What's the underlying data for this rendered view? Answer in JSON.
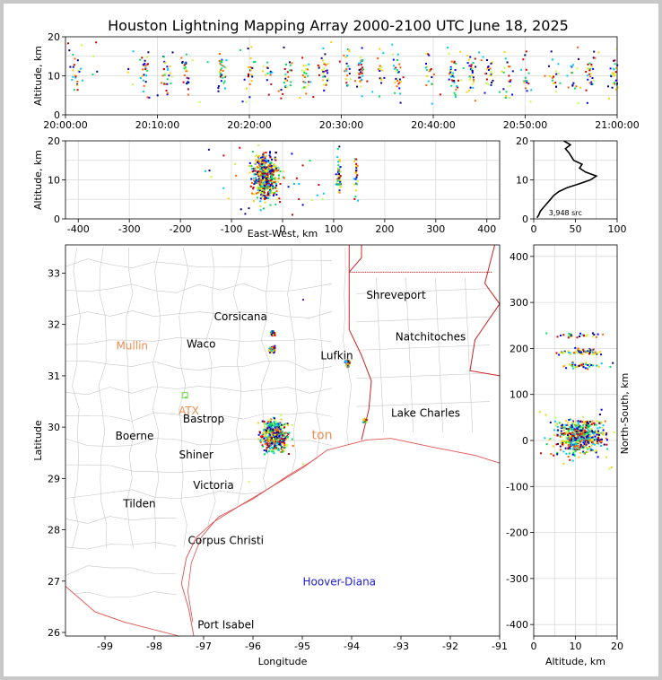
{
  "title": "Houston Lightning Mapping Array 2000-2100 UTC June 18, 2025",
  "colors": {
    "axis": "#000000",
    "grid": "#d9d9d9",
    "county": "#c8c8c8",
    "state": "#cc2222",
    "coast": "#e05050",
    "city": "#000000",
    "orange_site": "#f08c50",
    "blue_site": "#1f1fd0",
    "histogram": "#000000",
    "points": [
      "#000080",
      "#0000ff",
      "#00c8ff",
      "#00e060",
      "#c0ff40",
      "#ffd000",
      "#ff6000",
      "#d00000"
    ]
  },
  "chart_data": [
    {
      "id": "time_altitude",
      "type": "scatter",
      "xlabel": "",
      "ylabel": "Altitude, km",
      "x_ticks": [
        "20:00:00",
        "20:10:00",
        "20:20:00",
        "20:30:00",
        "20:40:00",
        "20:50:00",
        "21:00:00"
      ],
      "xlim": [
        "20:00:00",
        "21:00:00"
      ],
      "y_ticks": [
        0,
        10,
        20
      ],
      "ylim": [
        0,
        20
      ],
      "clusters_minutes": [
        1,
        8.5,
        11,
        13,
        17,
        20,
        22,
        24,
        26,
        28,
        30.5,
        32,
        34,
        36,
        39.5,
        42,
        44,
        46,
        48,
        50,
        53,
        55,
        57,
        59.5
      ],
      "grid": true
    },
    {
      "id": "east_west_altitude",
      "type": "scatter",
      "xlabel": "East-West, km",
      "ylabel": "Altitude, km",
      "x_ticks": [
        -400,
        -300,
        -200,
        -100,
        0,
        100,
        200,
        300,
        400
      ],
      "xlim": [
        -425,
        425
      ],
      "y_ticks": [
        0,
        10,
        20
      ],
      "ylim": [
        0,
        20
      ],
      "grid": true
    },
    {
      "id": "altitude_histogram",
      "type": "line",
      "xlabel": "",
      "ylabel": "",
      "x_ticks": [
        0,
        50,
        100
      ],
      "xlim": [
        0,
        100
      ],
      "y_ticks": [
        0,
        10,
        20
      ],
      "ylim": [
        0,
        20
      ],
      "annotation": "3,948 src",
      "profile": [
        {
          "alt": 0.3,
          "count": 4
        },
        {
          "alt": 1,
          "count": 6
        },
        {
          "alt": 2,
          "count": 8
        },
        {
          "alt": 3,
          "count": 12
        },
        {
          "alt": 4,
          "count": 16
        },
        {
          "alt": 5,
          "count": 20
        },
        {
          "alt": 6,
          "count": 24
        },
        {
          "alt": 7,
          "count": 30
        },
        {
          "alt": 8,
          "count": 40
        },
        {
          "alt": 9,
          "count": 55
        },
        {
          "alt": 10,
          "count": 68
        },
        {
          "alt": 11,
          "count": 75
        },
        {
          "alt": 12,
          "count": 62
        },
        {
          "alt": 13,
          "count": 55
        },
        {
          "alt": 14,
          "count": 58
        },
        {
          "alt": 15,
          "count": 48
        },
        {
          "alt": 16,
          "count": 45
        },
        {
          "alt": 17,
          "count": 42
        },
        {
          "alt": 18,
          "count": 38
        },
        {
          "alt": 19,
          "count": 44
        },
        {
          "alt": 20,
          "count": 36
        }
      ],
      "grid": true
    },
    {
      "id": "plan_view_map",
      "type": "scatter",
      "xlabel": "Longitude",
      "ylabel": "Latitude",
      "x_ticks": [
        -99,
        -98,
        -97,
        -96,
        -95,
        -94,
        -93,
        -92,
        -91
      ],
      "xlim": [
        -99.8,
        -91
      ],
      "y_ticks": [
        26,
        27,
        28,
        29,
        30,
        31,
        32,
        33
      ],
      "ylim": [
        25.93,
        33.55
      ],
      "cities": [
        {
          "name": "Shreveport",
          "lon": -93.1,
          "lat": 32.57
        },
        {
          "name": "Corsicana",
          "lon": -96.25,
          "lat": 32.15
        },
        {
          "name": "Natchitoches",
          "lon": -92.4,
          "lat": 31.76
        },
        {
          "name": "Waco",
          "lon": -97.05,
          "lat": 31.62
        },
        {
          "name": "Lufkin",
          "lon": -94.3,
          "lat": 31.39
        },
        {
          "name": "Bastrop",
          "lon": -97.0,
          "lat": 30.16
        },
        {
          "name": "Lake Charles",
          "lon": -92.5,
          "lat": 30.27
        },
        {
          "name": "Boerne",
          "lon": -98.4,
          "lat": 29.83
        },
        {
          "name": "Shiner",
          "lon": -97.15,
          "lat": 29.46
        },
        {
          "name": "Victoria",
          "lon": -96.8,
          "lat": 28.87
        },
        {
          "name": "Tilden",
          "lon": -98.3,
          "lat": 28.51
        },
        {
          "name": "Corpus Christi",
          "lon": -96.55,
          "lat": 27.79
        },
        {
          "name": "Port Isabel",
          "lon": -96.55,
          "lat": 26.15
        }
      ],
      "colored_labels": [
        {
          "name": "Mullin",
          "lon": -98.45,
          "lat": 31.58,
          "color": "orange_site"
        },
        {
          "name": "ATX",
          "lon": -97.3,
          "lat": 30.32,
          "color": "orange_site"
        },
        {
          "name": "ton",
          "lon": -94.6,
          "lat": 29.84,
          "color": "orange_site"
        },
        {
          "name": "Hoover-Diana",
          "lon": -94.25,
          "lat": 26.99,
          "color": "blue_site"
        }
      ]
    },
    {
      "id": "north_south_altitude",
      "type": "scatter",
      "xlabel": "Altitude, km",
      "ylabel": "North-South, km",
      "x_ticks": [
        0,
        10,
        20
      ],
      "xlim": [
        0,
        20
      ],
      "y_ticks": [
        -400,
        -300,
        -200,
        -100,
        0,
        100,
        200,
        300,
        400
      ],
      "ylim": [
        -425,
        425
      ],
      "grid": true
    }
  ]
}
